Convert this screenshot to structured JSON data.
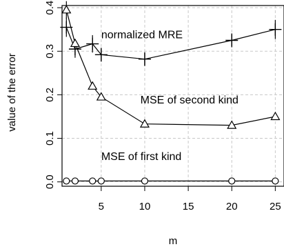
{
  "chart_data": {
    "type": "line",
    "xlabel": "m",
    "ylabel": "value of the error",
    "xlim": [
      0.5,
      26
    ],
    "ylim": [
      -0.01,
      0.405
    ],
    "x_ticks": [
      5,
      10,
      15,
      20,
      25
    ],
    "y_ticks": [
      0.0,
      0.1,
      0.2,
      0.3,
      0.4
    ],
    "x_tick_labels": [
      "5",
      "10",
      "15",
      "20",
      "25"
    ],
    "y_tick_labels": [
      "0.0",
      "0.1",
      "0.2",
      "0.3",
      "0.4"
    ],
    "grid": true,
    "series": [
      {
        "marker": "plus",
        "x": [
          1,
          2,
          4,
          5,
          10,
          20,
          25
        ],
        "y": [
          0.355,
          0.305,
          0.317,
          0.292,
          0.282,
          0.325,
          0.35
        ],
        "err": [
          0.022,
          0.02,
          0.02,
          0.016,
          0.016,
          0.016,
          0.022
        ]
      },
      {
        "marker": "triangle",
        "x": [
          1,
          2,
          4,
          5,
          10,
          20,
          25
        ],
        "y": [
          0.395,
          0.318,
          0.22,
          0.195,
          0.133,
          0.13,
          0.15
        ],
        "err": [
          0.02,
          0.01,
          0,
          0,
          0,
          0,
          0
        ]
      },
      {
        "marker": "circle",
        "x": [
          1,
          2,
          4,
          5,
          10,
          20,
          25
        ],
        "y": [
          0.002,
          0.002,
          0.002,
          0.002,
          0.002,
          0.002,
          0.002
        ],
        "err": [
          0,
          0,
          0,
          0,
          0,
          0,
          0
        ]
      }
    ],
    "annotations": [
      {
        "text": "normalized MRE",
        "x": 5,
        "y": 0.33
      },
      {
        "text": "MSE of second kind",
        "x": 9.5,
        "y": 0.18
      },
      {
        "text": "MSE of first kind",
        "x": 5,
        "y": 0.05
      }
    ]
  }
}
